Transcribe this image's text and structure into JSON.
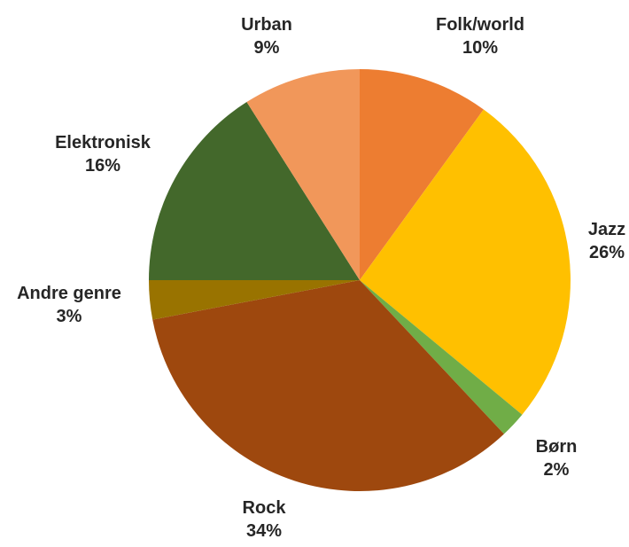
{
  "chart_data": {
    "type": "pie",
    "title": "",
    "start_angle_deg": 0,
    "direction": "clockwise",
    "slices": [
      {
        "label": "Folk/world",
        "value": 10,
        "display": "10%",
        "color": "#ED7D31"
      },
      {
        "label": "Jazz",
        "value": 26,
        "display": "26%",
        "color": "#FFC000"
      },
      {
        "label": "Børn",
        "value": 2,
        "display": "2%",
        "color": "#70AD47"
      },
      {
        "label": "Rock",
        "value": 34,
        "display": "34%",
        "color": "#9E480E"
      },
      {
        "label": "Andre genre",
        "value": 3,
        "display": "3%",
        "color": "#997300"
      },
      {
        "label": "Elektronisk",
        "value": 16,
        "display": "16%",
        "color": "#43682B"
      },
      {
        "label": "Urban",
        "value": 9,
        "display": "9%",
        "color": "#F1975A"
      }
    ],
    "legend": "none",
    "data_labels": "outside"
  }
}
